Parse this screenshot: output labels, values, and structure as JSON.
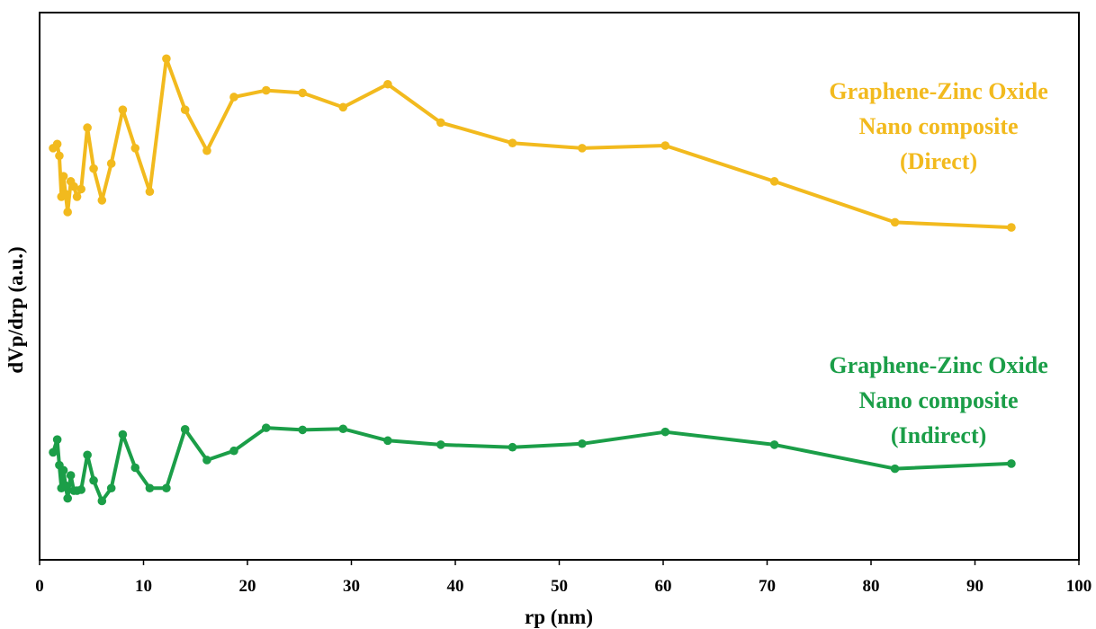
{
  "chart_data": {
    "type": "line",
    "title": "",
    "xlabel": "rp (nm)",
    "ylabel": "dVp/drp (a.u.)",
    "xlim": [
      0,
      100
    ],
    "xticks": [
      0,
      10,
      20,
      30,
      40,
      50,
      60,
      70,
      80,
      90,
      100
    ],
    "ylim": [
      0,
      100
    ],
    "y_tick_labels_shown": false,
    "grid": false,
    "legend": "none",
    "series": [
      {
        "label_lines": [
          "Graphene-Zinc Oxide",
          "Nano composite",
          "(Direct)"
        ],
        "color": "#F2BA1E",
        "x": [
          1.3,
          1.7,
          1.9,
          2.1,
          2.3,
          2.5,
          2.7,
          3.0,
          3.3,
          3.6,
          4.0,
          4.6,
          5.2,
          6.0,
          6.9,
          8.0,
          9.2,
          10.6,
          12.2,
          14.0,
          16.1,
          18.7,
          21.8,
          25.3,
          29.2,
          33.5,
          38.6,
          45.5,
          52.2,
          60.2,
          70.7,
          82.3,
          93.5
        ],
        "y": [
          77.0,
          77.8,
          75.5,
          67.5,
          71.5,
          68.0,
          64.5,
          70.5,
          69.5,
          67.5,
          69.0,
          81.0,
          73.0,
          66.8,
          74.0,
          84.5,
          77.0,
          68.5,
          94.5,
          84.5,
          76.5,
          87.0,
          88.3,
          87.8,
          85.0,
          89.5,
          82.0,
          78.0,
          77.0,
          77.5,
          70.5,
          62.5,
          61.5
        ]
      },
      {
        "label_lines": [
          "Graphene-Zinc Oxide",
          "Nano composite",
          "(Indirect)"
        ],
        "color": "#1B9E48",
        "x": [
          1.3,
          1.7,
          1.9,
          2.1,
          2.3,
          2.5,
          2.7,
          3.0,
          3.3,
          3.6,
          4.0,
          4.6,
          5.2,
          6.0,
          6.9,
          8.0,
          9.2,
          10.6,
          12.2,
          14.0,
          16.1,
          18.7,
          21.8,
          25.3,
          29.2,
          33.5,
          38.6,
          45.5,
          52.2,
          60.2,
          70.7,
          82.3,
          93.5
        ],
        "y": [
          17.5,
          20.0,
          15.0,
          10.5,
          14.0,
          11.0,
          8.5,
          13.0,
          10.0,
          10.0,
          10.2,
          17.0,
          12.0,
          8.0,
          10.5,
          21.0,
          14.5,
          10.5,
          10.5,
          22.0,
          16.0,
          17.8,
          22.3,
          21.9,
          22.1,
          19.8,
          19.0,
          18.5,
          19.2,
          21.5,
          19.0,
          14.3,
          15.3
        ]
      }
    ]
  }
}
